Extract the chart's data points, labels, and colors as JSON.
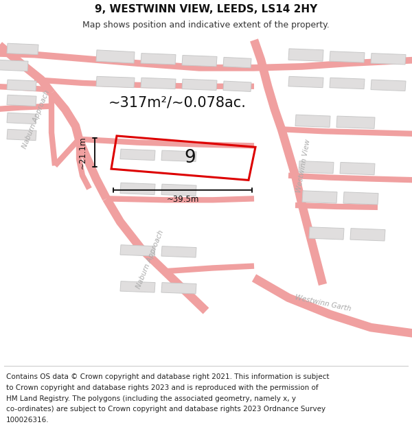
{
  "title": "9, WESTWINN VIEW, LEEDS, LS14 2HY",
  "subtitle": "Map shows position and indicative extent of the property.",
  "footer_lines": [
    "Contains OS data © Crown copyright and database right 2021. This information is subject",
    "to Crown copyright and database rights 2023 and is reproduced with the permission of",
    "HM Land Registry. The polygons (including the associated geometry, namely x, y",
    "co-ordinates) are subject to Crown copyright and database rights 2023 Ordnance Survey",
    "100026316."
  ],
  "bg_color": "#ffffff",
  "map_bg": "#f7f0f0",
  "road_color": "#f0a0a0",
  "building_fill": "#e0dede",
  "building_outline": "#c8c8c8",
  "highlight_color": "#dd0000",
  "area_text": "~317m²/~0.078ac.",
  "number_label": "9",
  "width_label": "~39.5m",
  "height_label": "~21.1m",
  "title_fontsize": 11,
  "subtitle_fontsize": 9,
  "footer_fontsize": 7.5,
  "street_label_color": "#aaaaaa",
  "street_label_size": 7.5
}
